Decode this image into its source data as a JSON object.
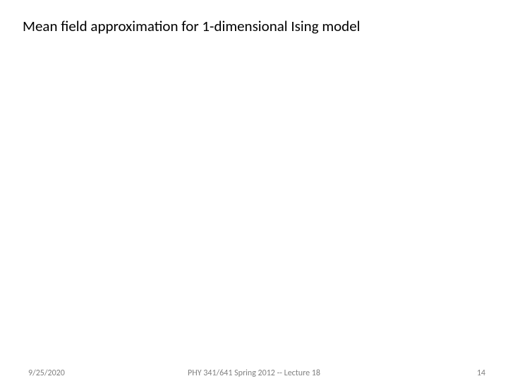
{
  "title": "Mean field approximation for 1-dimensional Ising model",
  "footer": {
    "date": "9/25/2020",
    "course": "PHY 341/641 Spring 2012 -- Lecture 18",
    "page": "14"
  },
  "colors": {
    "background": "#ffffff",
    "title_text": "#000000",
    "footer_text": "#808080"
  },
  "typography": {
    "title_fontsize": 21,
    "footer_fontsize": 12,
    "font_family": "Calibri, Arial, sans-serif"
  }
}
